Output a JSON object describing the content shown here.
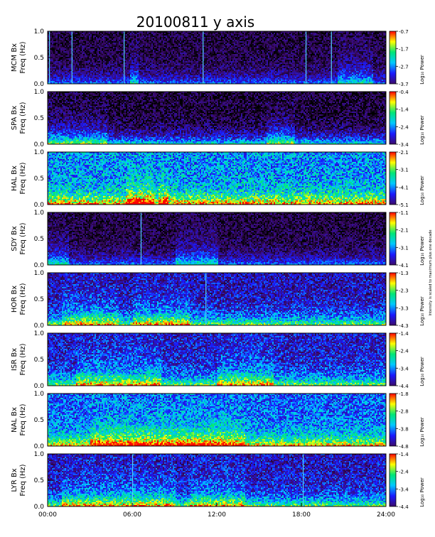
{
  "chart_data": {
    "type": "heatmap",
    "title": "20100811  y  axis",
    "x_ticks": [
      "00:00",
      "06:00",
      "12:00",
      "18:00",
      "24:00"
    ],
    "x_range_hours": [
      0,
      24
    ],
    "y_ticks": [
      "0.0",
      "0.5",
      "1.0"
    ],
    "y_range": [
      0,
      1.0
    ],
    "colorbar_label": "Log₁₀ Power",
    "side_note": "Intensity is scaled to maximum plus one decade",
    "colors": [
      "#000000",
      "#3b0a6b",
      "#1a1aff",
      "#00c8ff",
      "#00e676",
      "#ffff00",
      "#ff0000"
    ],
    "panels": [
      {
        "station": "MCM Bx",
        "freq_label": "Freq (Hz)",
        "cbar": [
          "-0.7",
          "-1.7",
          "-2.7",
          "-3.7"
        ],
        "cbar_range": [
          -3.7,
          -0.7
        ]
      },
      {
        "station": "SPA Bx",
        "freq_label": "Freq (Hz)",
        "cbar": [
          "-0.4",
          "-1.4",
          "-2.4",
          "-3.4"
        ],
        "cbar_range": [
          -3.4,
          -0.4
        ]
      },
      {
        "station": "HAL Bx",
        "freq_label": "Freq (Hz)",
        "cbar": [
          "-2.1",
          "-3.1",
          "-4.1",
          "-5.1"
        ],
        "cbar_range": [
          -5.1,
          -2.1
        ]
      },
      {
        "station": "SDY Bx",
        "freq_label": "Freq (Hz)",
        "cbar": [
          "-1.1",
          "-2.1",
          "-3.1",
          "-4.1"
        ],
        "cbar_range": [
          -4.1,
          -1.1
        ]
      },
      {
        "station": "HOR Bx",
        "freq_label": "Freq (Hz)",
        "cbar": [
          "-1.3",
          "-2.3",
          "-3.3",
          "-4.3"
        ],
        "cbar_range": [
          -4.3,
          -1.3
        ]
      },
      {
        "station": "ISR Bx",
        "freq_label": "Freq (Hz)",
        "cbar": [
          "-1.4",
          "-2.4",
          "-3.4",
          "-4.4"
        ],
        "cbar_range": [
          -4.4,
          -1.4
        ]
      },
      {
        "station": "NAL Bx",
        "freq_label": "Freq (Hz)",
        "cbar": [
          "-1.8",
          "-2.8",
          "-3.8",
          "-4.8"
        ],
        "cbar_range": [
          -4.8,
          -1.8
        ]
      },
      {
        "station": "LYR Bx",
        "freq_label": "Freq (Hz)",
        "cbar": [
          "-1.4",
          "-2.4",
          "-3.4",
          "-4.4"
        ],
        "cbar_range": [
          -4.4,
          -1.4
        ]
      }
    ]
  }
}
